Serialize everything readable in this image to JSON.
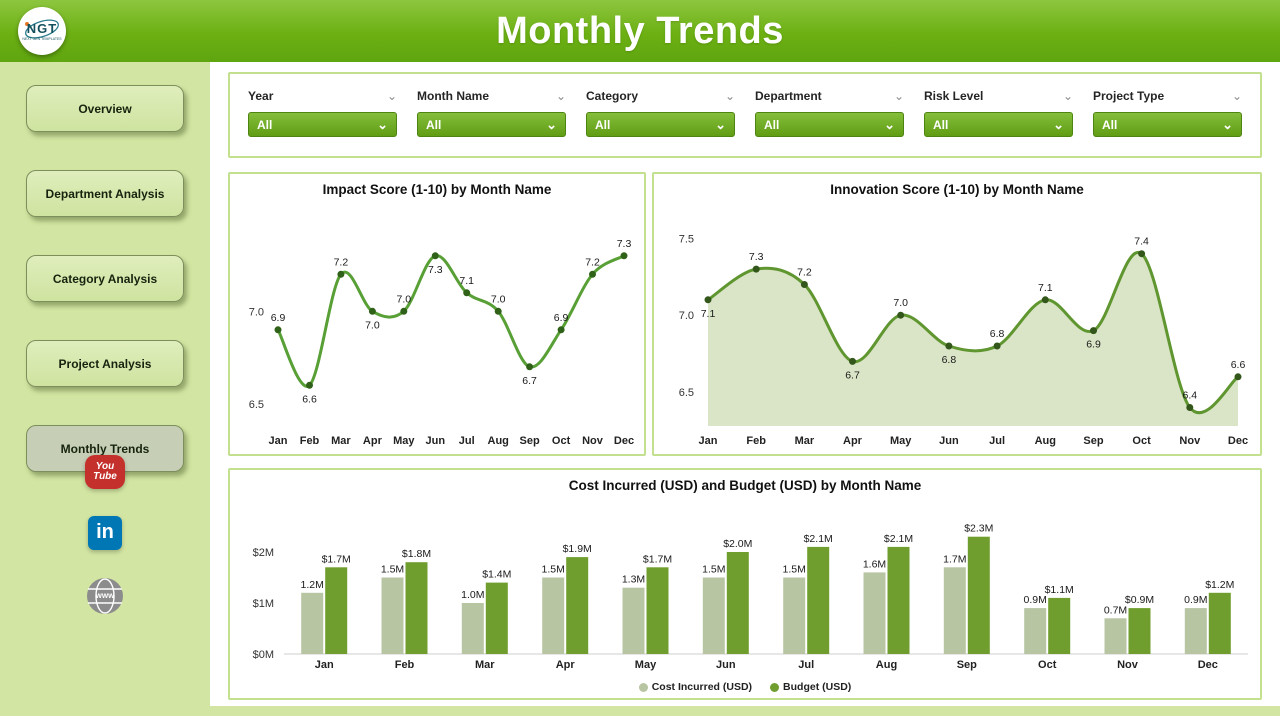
{
  "header": {
    "title": "Monthly Trends"
  },
  "logo": {
    "text": "NGT",
    "subtext": "NEXT GEN TEMPLATES"
  },
  "sidebar": {
    "items": [
      {
        "label": "Overview",
        "active": false
      },
      {
        "label": "Department Analysis",
        "active": false
      },
      {
        "label": "Category Analysis",
        "active": false
      },
      {
        "label": "Project Analysis",
        "active": false
      },
      {
        "label": "Monthly Trends",
        "active": true
      }
    ]
  },
  "social": {
    "youtube": {
      "line1": "You",
      "line2": "Tube",
      "color": "#c4302b"
    },
    "linkedin": {
      "label": "in",
      "color": "#0077b5"
    },
    "web": {
      "label": "www",
      "color": "#8c8c8c"
    }
  },
  "filters": [
    {
      "label": "Year",
      "value": "All"
    },
    {
      "label": "Month Name",
      "value": "All"
    },
    {
      "label": "Category",
      "value": "All"
    },
    {
      "label": "Department",
      "value": "All"
    },
    {
      "label": "Risk Level",
      "value": "All"
    },
    {
      "label": "Project Type",
      "value": "All"
    }
  ],
  "theme": {
    "header_green": "#6cb013",
    "sidebar_green": "#d2e5a2",
    "panel_border": "#c3e08e",
    "slicer_green": "#6aa81e"
  },
  "chart_data": [
    {
      "type": "line",
      "title": "Impact Score (1-10) by Month Name",
      "categories": [
        "Jan",
        "Feb",
        "Mar",
        "Apr",
        "May",
        "Jun",
        "Jul",
        "Aug",
        "Sep",
        "Oct",
        "Nov",
        "Dec"
      ],
      "values": [
        6.9,
        6.6,
        7.2,
        7.0,
        7.0,
        7.3,
        7.1,
        7.0,
        6.7,
        6.9,
        7.2,
        7.3
      ],
      "label_pos": [
        "above",
        "below",
        "above",
        "below",
        "above",
        "below",
        "above",
        "above",
        "below",
        "above",
        "above",
        "above"
      ],
      "yticks": [
        6.5,
        7.0
      ],
      "ylim": [
        6.38,
        7.45
      ],
      "line_color": "#58a036",
      "marker_color": "#2f6118",
      "grid": false,
      "legend": "none"
    },
    {
      "type": "area",
      "title": "Innovation Score (1-10) by Month Name",
      "categories": [
        "Jan",
        "Feb",
        "Mar",
        "Apr",
        "May",
        "Jun",
        "Jul",
        "Aug",
        "Sep",
        "Oct",
        "Nov",
        "Dec"
      ],
      "values": [
        7.1,
        7.3,
        7.2,
        6.7,
        7.0,
        6.8,
        6.8,
        7.1,
        6.9,
        7.4,
        6.4,
        6.6
      ],
      "label_pos": [
        "below",
        "above",
        "above",
        "below",
        "above",
        "below",
        "above",
        "above",
        "below",
        "above",
        "above",
        "above"
      ],
      "yticks": [
        6.5,
        7.0,
        7.5
      ],
      "ylim": [
        6.28,
        7.58
      ],
      "line_color": "#5f9630",
      "marker_color": "#33571b",
      "fill_color": "#dae4c6",
      "grid": false,
      "legend": "none"
    },
    {
      "type": "bar",
      "title": "Cost Incurred (USD) and Budget (USD) by Month Name",
      "categories": [
        "Jan",
        "Feb",
        "Mar",
        "Apr",
        "May",
        "Jun",
        "Jul",
        "Aug",
        "Sep",
        "Oct",
        "Nov",
        "Dec"
      ],
      "series": [
        {
          "name": "Cost Incurred (USD)",
          "color": "#b7c5a3",
          "values": [
            1.2,
            1.5,
            1.0,
            1.5,
            1.3,
            1.5,
            1.5,
            1.6,
            1.7,
            0.9,
            0.7,
            0.9
          ],
          "labels": [
            "1.2M",
            "1.5M",
            "1.0M",
            "1.5M",
            "1.3M",
            "1.5M",
            "1.5M",
            "1.6M",
            "1.7M",
            "0.9M",
            "0.7M",
            "0.9M"
          ]
        },
        {
          "name": "Budget (USD)",
          "color": "#6f9e2e",
          "values": [
            1.7,
            1.8,
            1.4,
            1.9,
            1.7,
            2.0,
            2.1,
            2.1,
            2.3,
            1.1,
            0.9,
            1.2
          ],
          "labels": [
            "$1.7M",
            "$1.8M",
            "$1.4M",
            "$1.9M",
            "$1.7M",
            "$2.0M",
            "$2.1M",
            "$2.1M",
            "$2.3M",
            "$1.1M",
            "$0.9M",
            "$1.2M"
          ]
        }
      ],
      "ytick_values": [
        0,
        1,
        2
      ],
      "ytick_labels": [
        "$0M",
        "$1M",
        "$2M"
      ],
      "ylim": [
        0,
        2.55
      ],
      "grid": false,
      "legend_position": "bottom"
    }
  ]
}
